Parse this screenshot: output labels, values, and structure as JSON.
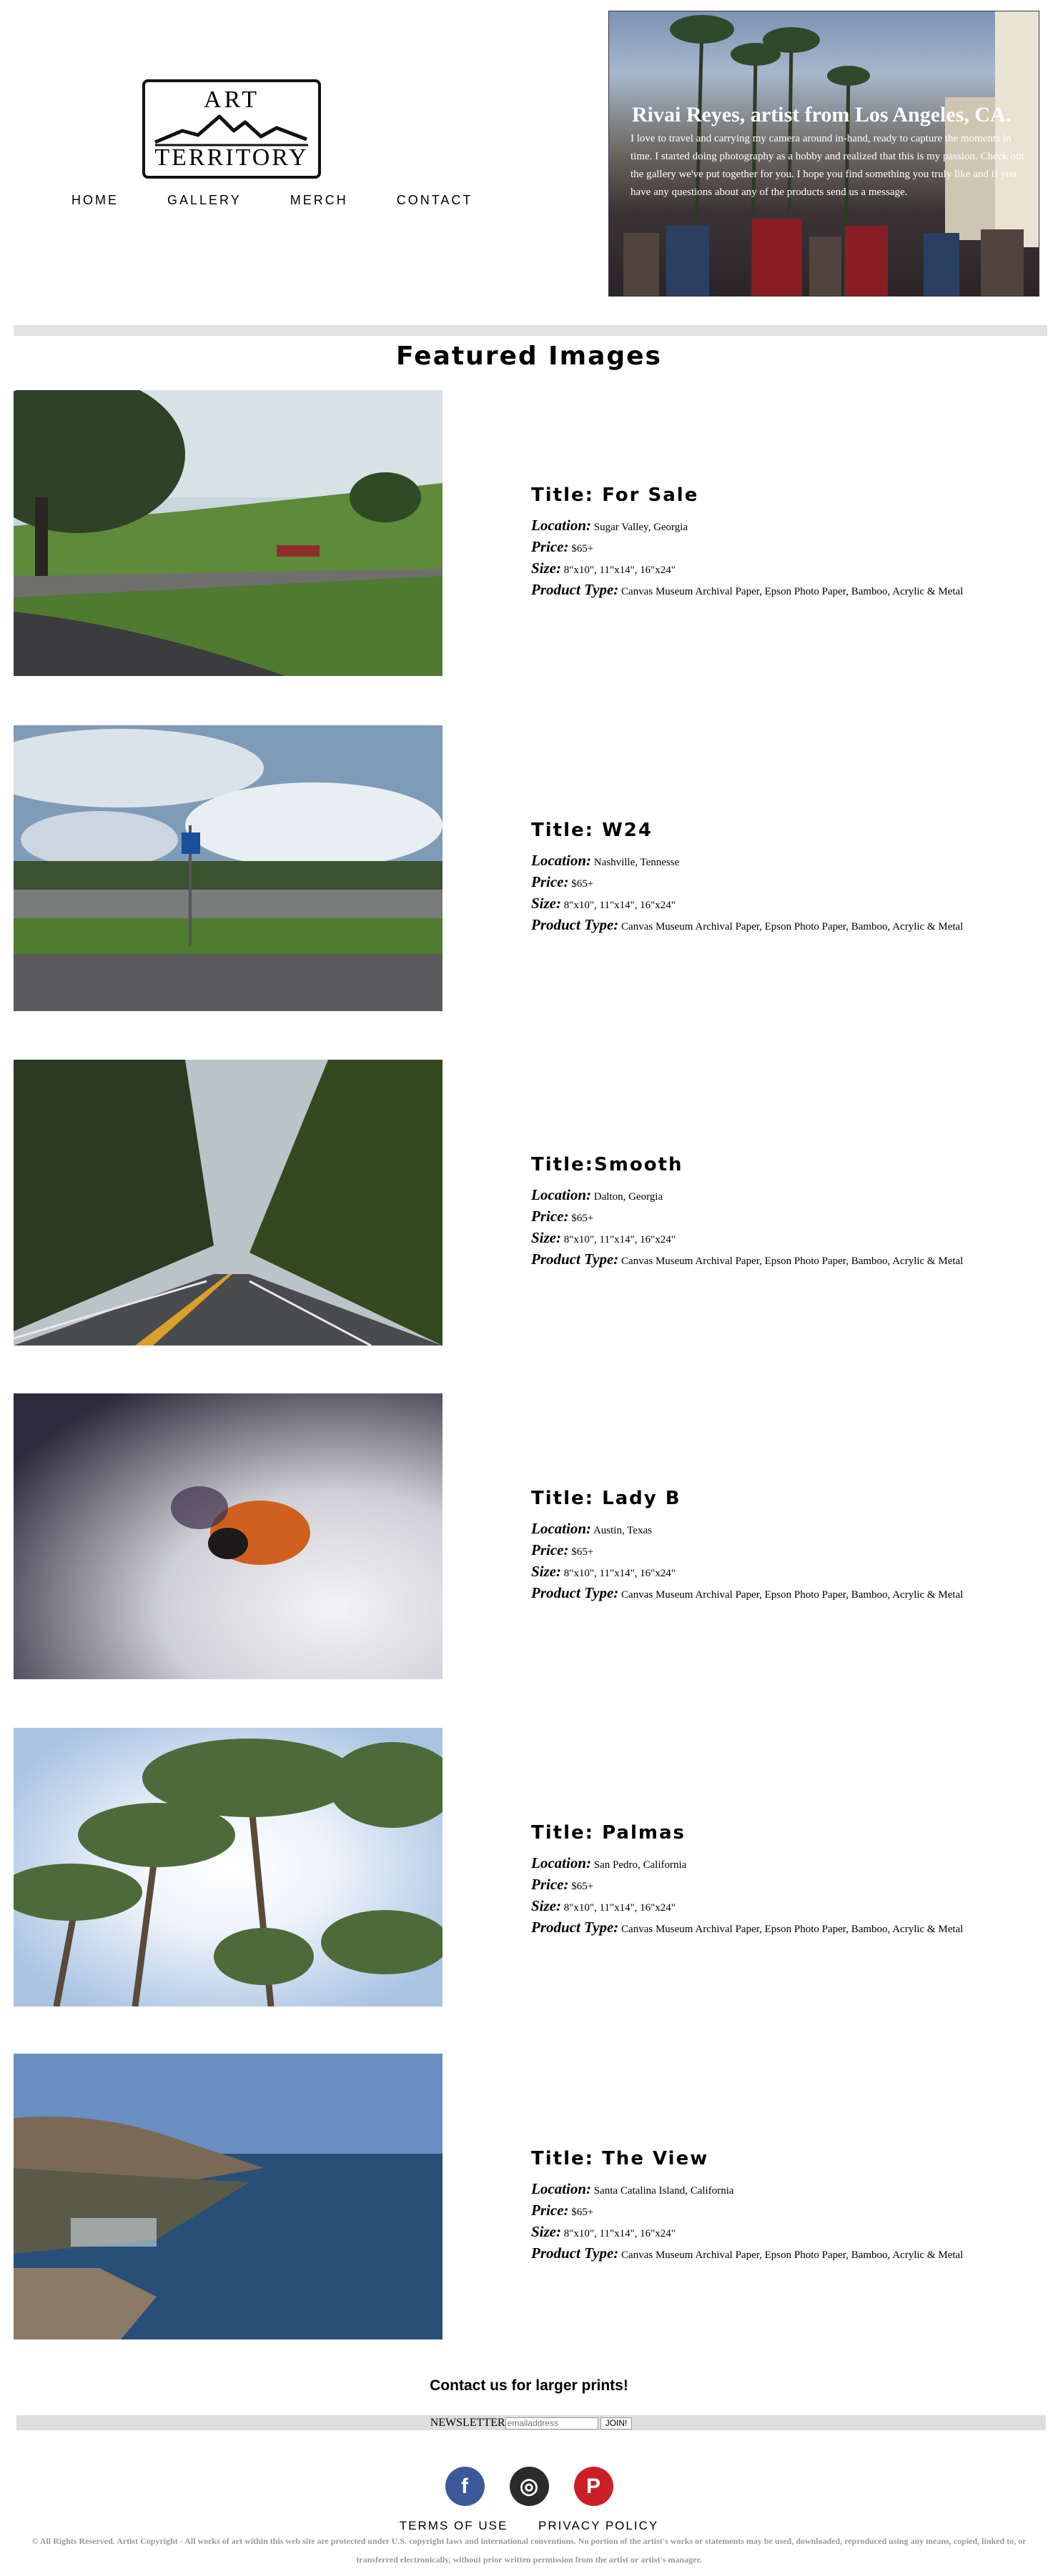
{
  "logo": {
    "line1": "ART",
    "line2": "TERRITORY"
  },
  "nav": [
    "HOME",
    "GALLERY",
    "MERCH",
    "CONTACT"
  ],
  "hero": {
    "title": "Rivai Reyes, artist from Los Angeles, CA.",
    "description": "I love to travel and carrying my camera around in-hand, ready to capture the moments in time. I started doing photography as a hobby and realized that this is my passion. Check out the gallery we've put together for you. I hope you find something you truly like and if you have any questions about any of the products send us a message."
  },
  "featured_title": "Featured Images",
  "labels": {
    "location": "Location:",
    "price": "Price:",
    "size": "Size:",
    "product_type": "Product Type:"
  },
  "items": [
    {
      "title": "Title: For Sale",
      "location": "Sugar Valley, Georgia",
      "price": "$65+",
      "size": "8\"x10\", 11\"x14\", 16\"x24\"",
      "product_type": "Canvas Museum Archival Paper, Epson Photo Paper, Bamboo, Acrylic & Metal"
    },
    {
      "title": "Title: W24",
      "location": "Nashville, Tennesse",
      "price": "$65+",
      "size": "8\"x10\", 11\"x14\", 16\"x24\"",
      "product_type": "Canvas Museum Archival Paper, Epson Photo Paper, Bamboo, Acrylic & Metal"
    },
    {
      "title": "Title:Smooth",
      "location": "Dalton, Georgia",
      "price": "$65+",
      "size": "8\"x10\", 11\"x14\", 16\"x24\"",
      "product_type": "Canvas Museum Archival Paper, Epson Photo Paper, Bamboo, Acrylic & Metal"
    },
    {
      "title": "Title: Lady B",
      "location": "Austin, Texas",
      "price": "$65+",
      "size": "8\"x10\", 11\"x14\", 16\"x24\"",
      "product_type": "Canvas Museum Archival Paper, Epson Photo Paper, Bamboo, Acrylic & Metal"
    },
    {
      "title": "Title: Palmas",
      "location": "San Pedro, California",
      "price": "$65+",
      "size": "8\"x10\", 11\"x14\", 16\"x24\"",
      "product_type": "Canvas Museum Archival Paper, Epson Photo Paper, Bamboo, Acrylic & Metal"
    },
    {
      "title": "Title: The View",
      "location": "Santa Catalina Island, California",
      "price": "$65+",
      "size": "8\"x10\", 11\"x14\", 16\"x24\"",
      "product_type": "Canvas Museum Archival Paper, Epson Photo Paper, Bamboo, Acrylic & Metal"
    }
  ],
  "contact": "Contact us for larger prints!",
  "newsletter": {
    "label": "NEWSLETTER",
    "placeholder": "emailaddress",
    "button": "JOIN!"
  },
  "socials": [
    {
      "icon": "facebook-icon",
      "glyph": "f",
      "color": "#3b5998"
    },
    {
      "icon": "instagram-icon",
      "glyph": "◎",
      "color": "#2b2b2b"
    },
    {
      "icon": "pinterest-icon",
      "glyph": "P",
      "color": "#cb2027"
    }
  ],
  "footer_links": [
    "TERMS OF USE",
    "PRIVACY POLICY"
  ],
  "copyright": "© All Rights Reserved. Artist Copyright - All works of art within this web site are protected under U.S. copyright laws and international conventions. No portion of the artist's works or statements may be used, downloaded, reproduced using any means, copied, linked to, or transferred electronically, without prior written permission from the artist or artist's manager."
}
